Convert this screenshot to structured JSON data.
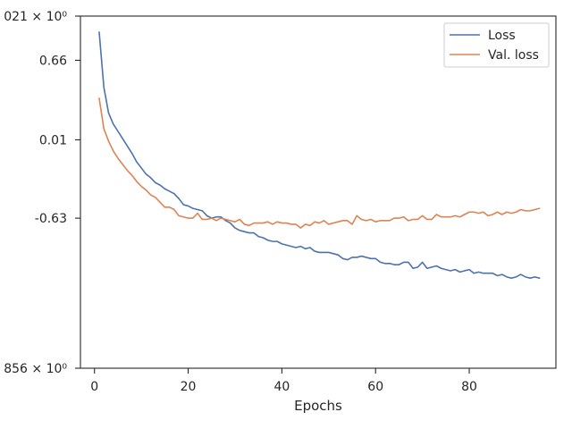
{
  "chart_data": {
    "type": "line",
    "title": "",
    "xlabel": "Epochs",
    "ylabel": "",
    "xlim": [
      -3,
      98.5
    ],
    "ylim": [
      -1.856,
      1.021
    ],
    "xticks": [
      0,
      20,
      40,
      60,
      80
    ],
    "xtick_labels": [
      "0",
      "20",
      "40",
      "60",
      "80"
    ],
    "yticks": [
      -1.856,
      -0.63,
      0.01,
      0.66,
      1.021
    ],
    "ytick_labels": [
      "856 × 10⁰",
      "-0.63",
      "0.01",
      "0.66",
      "021 × 10⁰"
    ],
    "grid": false,
    "legend_position": "top-right",
    "series": [
      {
        "name": "Loss",
        "color": "#4c72b0",
        "x": [
          1,
          2,
          3,
          4,
          5,
          6,
          7,
          8,
          9,
          10,
          11,
          12,
          13,
          14,
          15,
          16,
          17,
          18,
          19,
          20,
          21,
          22,
          23,
          24,
          25,
          26,
          27,
          28,
          29,
          30,
          31,
          32,
          33,
          34,
          35,
          36,
          37,
          38,
          39,
          40,
          41,
          42,
          43,
          44,
          45,
          46,
          47,
          48,
          49,
          50,
          51,
          52,
          53,
          54,
          55,
          56,
          57,
          58,
          59,
          60,
          61,
          62,
          63,
          64,
          65,
          66,
          67,
          68,
          69,
          70,
          71,
          72,
          73,
          74,
          75,
          76,
          77,
          78,
          79,
          80,
          81,
          82,
          83,
          84,
          85,
          86,
          87,
          88,
          89,
          90,
          91,
          92,
          93,
          94,
          95
        ],
        "values": [
          0.89,
          0.44,
          0.23,
          0.14,
          0.08,
          0.02,
          -0.04,
          -0.1,
          -0.17,
          -0.22,
          -0.27,
          -0.3,
          -0.34,
          -0.36,
          -0.39,
          -0.41,
          -0.43,
          -0.47,
          -0.52,
          -0.53,
          -0.55,
          -0.56,
          -0.57,
          -0.61,
          -0.63,
          -0.62,
          -0.62,
          -0.65,
          -0.67,
          -0.71,
          -0.73,
          -0.74,
          -0.75,
          -0.75,
          -0.78,
          -0.79,
          -0.81,
          -0.82,
          -0.82,
          -0.84,
          -0.85,
          -0.86,
          -0.87,
          -0.86,
          -0.88,
          -0.87,
          -0.9,
          -0.91,
          -0.91,
          -0.91,
          -0.92,
          -0.93,
          -0.96,
          -0.97,
          -0.95,
          -0.95,
          -0.94,
          -0.95,
          -0.96,
          -0.96,
          -0.99,
          -1.0,
          -1.0,
          -1.01,
          -1.01,
          -0.99,
          -0.99,
          -1.04,
          -1.03,
          -0.99,
          -1.04,
          -1.03,
          -1.02,
          -1.04,
          -1.05,
          -1.06,
          -1.05,
          -1.07,
          -1.06,
          -1.05,
          -1.08,
          -1.07,
          -1.08,
          -1.08,
          -1.08,
          -1.1,
          -1.09,
          -1.11,
          -1.12,
          -1.11,
          -1.09,
          -1.11,
          -1.12,
          -1.11,
          -1.12
        ]
      },
      {
        "name": "Val. loss",
        "color": "#dd8452",
        "x": [
          1,
          2,
          3,
          4,
          5,
          6,
          7,
          8,
          9,
          10,
          11,
          12,
          13,
          14,
          15,
          16,
          17,
          18,
          19,
          20,
          21,
          22,
          23,
          24,
          25,
          26,
          27,
          28,
          29,
          30,
          31,
          32,
          33,
          34,
          35,
          36,
          37,
          38,
          39,
          40,
          41,
          42,
          43,
          44,
          45,
          46,
          47,
          48,
          49,
          50,
          51,
          52,
          53,
          54,
          55,
          56,
          57,
          58,
          59,
          60,
          61,
          62,
          63,
          64,
          65,
          66,
          67,
          68,
          69,
          70,
          71,
          72,
          73,
          74,
          75,
          76,
          77,
          78,
          79,
          80,
          81,
          82,
          83,
          84,
          85,
          86,
          87,
          88,
          89,
          90,
          91,
          92,
          93,
          94,
          95
        ],
        "values": [
          0.35,
          0.1,
          0.0,
          -0.08,
          -0.14,
          -0.19,
          -0.24,
          -0.28,
          -0.33,
          -0.37,
          -0.4,
          -0.44,
          -0.46,
          -0.5,
          -0.54,
          -0.54,
          -0.56,
          -0.61,
          -0.62,
          -0.63,
          -0.63,
          -0.59,
          -0.64,
          -0.64,
          -0.63,
          -0.65,
          -0.63,
          -0.64,
          -0.65,
          -0.66,
          -0.64,
          -0.68,
          -0.69,
          -0.67,
          -0.67,
          -0.67,
          -0.66,
          -0.68,
          -0.66,
          -0.67,
          -0.67,
          -0.68,
          -0.68,
          -0.71,
          -0.68,
          -0.69,
          -0.66,
          -0.67,
          -0.65,
          -0.68,
          -0.67,
          -0.66,
          -0.65,
          -0.65,
          -0.68,
          -0.61,
          -0.64,
          -0.65,
          -0.64,
          -0.66,
          -0.65,
          -0.65,
          -0.65,
          -0.63,
          -0.63,
          -0.62,
          -0.65,
          -0.64,
          -0.64,
          -0.61,
          -0.64,
          -0.64,
          -0.6,
          -0.62,
          -0.62,
          -0.62,
          -0.61,
          -0.62,
          -0.6,
          -0.58,
          -0.58,
          -0.59,
          -0.58,
          -0.61,
          -0.6,
          -0.58,
          -0.6,
          -0.58,
          -0.59,
          -0.58,
          -0.56,
          -0.57,
          -0.57,
          -0.56,
          -0.55
        ]
      }
    ]
  }
}
